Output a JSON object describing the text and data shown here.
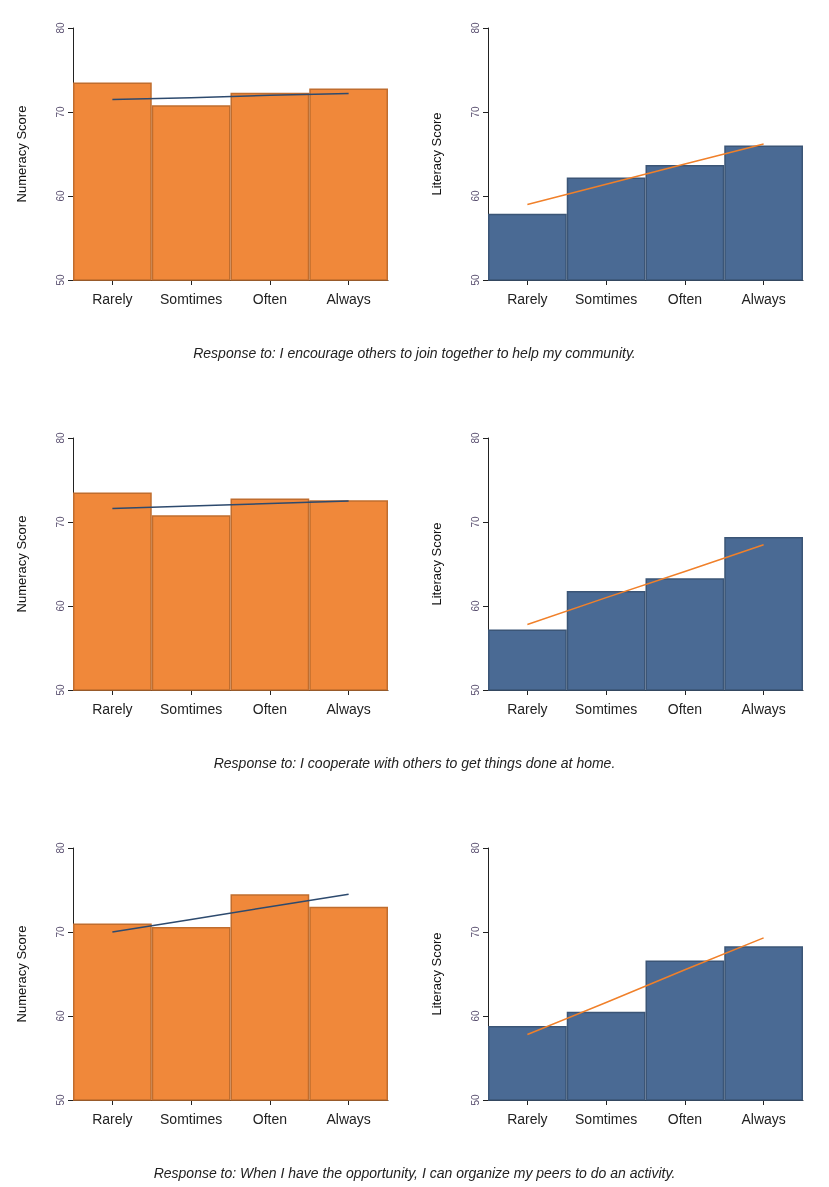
{
  "chart_data": [
    {
      "type": "bar",
      "categories": [
        "Rarely",
        "Somtimes",
        "Often",
        "Always"
      ],
      "ylabel": "Numeracy Score",
      "ylim": [
        50,
        80
      ],
      "yticks": [
        50,
        60,
        70,
        80
      ],
      "grid": false,
      "annotations": [
        "Response to: I encourage others to join together to help my community."
      ],
      "series": [
        {
          "color": "#f0883a",
          "values": [
            73.5,
            70.8,
            72.3,
            72.8
          ]
        },
        {
          "type": "line",
          "color": "#2d4a6e",
          "values": [
            71.5,
            71.7,
            72.0,
            72.2
          ]
        }
      ]
    },
    {
      "type": "bar",
      "categories": [
        "Rarely",
        "Somtimes",
        "Often",
        "Always"
      ],
      "ylabel": "Literacy Score",
      "ylim": [
        50,
        80
      ],
      "yticks": [
        50,
        60,
        70,
        80
      ],
      "grid": false,
      "series": [
        {
          "color": "#4a6a94",
          "values": [
            57.9,
            62.2,
            63.7,
            66.0
          ]
        },
        {
          "type": "line",
          "color": "#f0802a",
          "values": [
            59.0,
            61.4,
            63.8,
            66.2
          ]
        }
      ]
    },
    {
      "type": "bar",
      "categories": [
        "Rarely",
        "Somtimes",
        "Often",
        "Always"
      ],
      "ylabel": "Numeracy Score",
      "ylim": [
        50,
        80
      ],
      "yticks": [
        50,
        60,
        70,
        80
      ],
      "grid": false,
      "annotations": [
        "Response to: I cooperate with others to get things done at home."
      ],
      "series": [
        {
          "color": "#f0883a",
          "values": [
            73.5,
            70.8,
            72.8,
            72.6
          ]
        },
        {
          "type": "line",
          "color": "#2d4a6e",
          "values": [
            71.6,
            71.9,
            72.2,
            72.5
          ]
        }
      ]
    },
    {
      "type": "bar",
      "categories": [
        "Rarely",
        "Somtimes",
        "Often",
        "Always"
      ],
      "ylabel": "Literacy Score",
      "ylim": [
        50,
        80
      ],
      "yticks": [
        50,
        60,
        70,
        80
      ],
      "grid": false,
      "series": [
        {
          "color": "#4a6a94",
          "values": [
            57.2,
            61.8,
            63.3,
            68.2
          ]
        },
        {
          "type": "line",
          "color": "#f0802a",
          "values": [
            57.8,
            61.0,
            64.1,
            67.3
          ]
        }
      ]
    },
    {
      "type": "bar",
      "categories": [
        "Rarely",
        "Somtimes",
        "Often",
        "Always"
      ],
      "ylabel": "Numeracy Score",
      "ylim": [
        50,
        80
      ],
      "yticks": [
        50,
        60,
        70,
        80
      ],
      "grid": false,
      "annotations": [
        "Response to: When I have the opportunity, I can organize my peers to do an activity."
      ],
      "series": [
        {
          "color": "#f0883a",
          "values": [
            71.0,
            70.6,
            74.5,
            73.0
          ]
        },
        {
          "type": "line",
          "color": "#2d4a6e",
          "values": [
            70.0,
            71.5,
            73.0,
            74.5
          ]
        }
      ]
    },
    {
      "type": "bar",
      "categories": [
        "Rarely",
        "Somtimes",
        "Often",
        "Always"
      ],
      "ylabel": "Literacy Score",
      "ylim": [
        50,
        80
      ],
      "yticks": [
        50,
        60,
        70,
        80
      ],
      "grid": false,
      "series": [
        {
          "color": "#4a6a94",
          "values": [
            58.8,
            60.5,
            66.6,
            68.3
          ]
        },
        {
          "type": "line",
          "color": "#f0802a",
          "values": [
            57.8,
            61.6,
            65.5,
            69.3
          ]
        }
      ]
    }
  ]
}
